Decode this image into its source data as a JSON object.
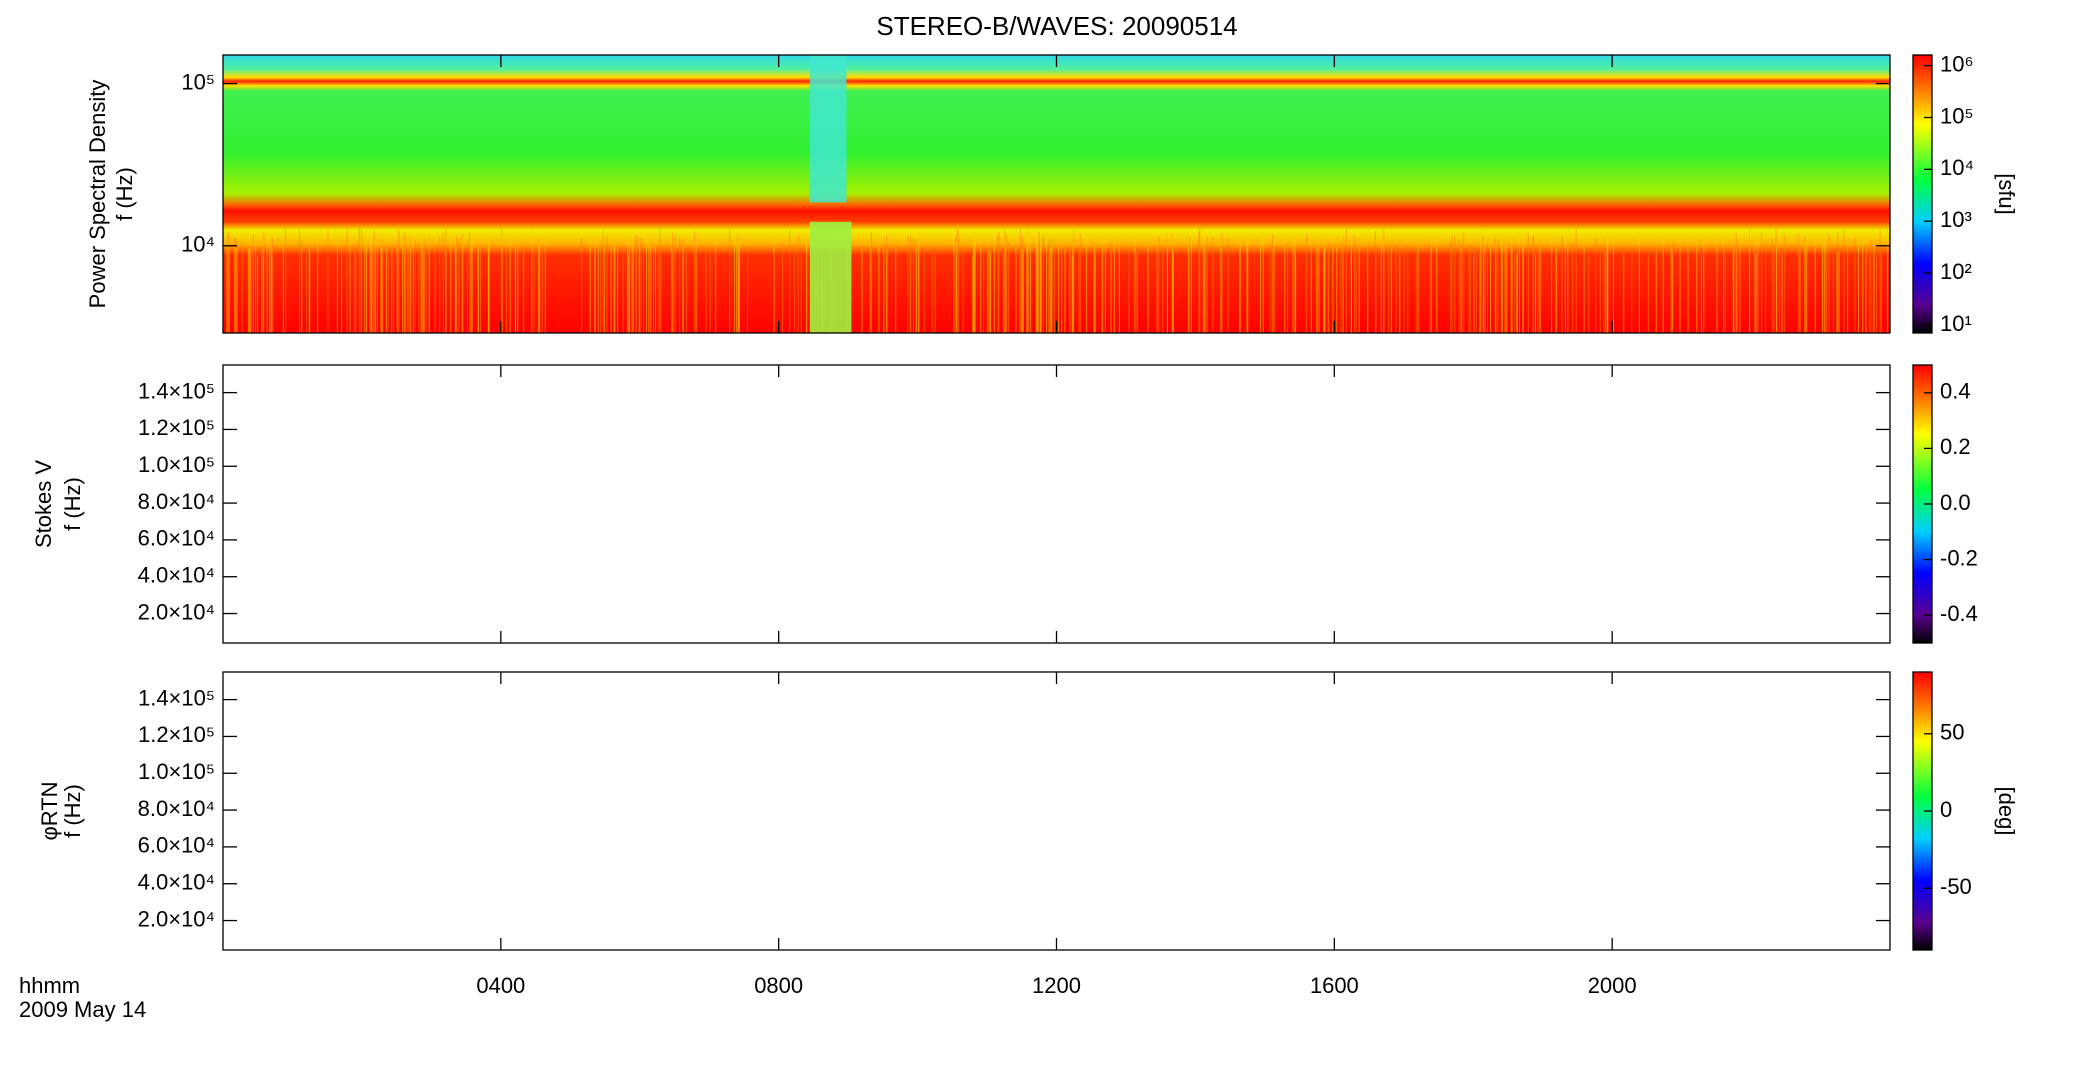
{
  "title": "STEREO-B/WAVES: 20090514",
  "x_axis": {
    "xlim": [
      0,
      24
    ],
    "xticks": [
      {
        "value": 4,
        "label": "0400"
      },
      {
        "value": 8,
        "label": "0800"
      },
      {
        "value": 12,
        "label": "1200"
      },
      {
        "value": 16,
        "label": "1600"
      },
      {
        "value": 20,
        "label": "2000"
      }
    ],
    "label": [
      "hhmm",
      "2009 May 14"
    ]
  },
  "chart_data": [
    {
      "type": "heatmap",
      "ylabel": [
        "Power Spectral Density",
        "f (Hz)"
      ],
      "ylog": true,
      "ylim": [
        2900,
        150000
      ],
      "yticks": [
        {
          "value": 10000,
          "label": "10⁴"
        },
        {
          "value": 100000,
          "label": "10⁵"
        }
      ],
      "colorbar": {
        "log": true,
        "lim": [
          7,
          1600000
        ],
        "label": "[sfu]",
        "ticks": [
          {
            "value": 10,
            "label": "10¹"
          },
          {
            "value": 100,
            "label": "10²"
          },
          {
            "value": 1000,
            "label": "10³"
          },
          {
            "value": 10000,
            "label": "10⁴"
          },
          {
            "value": 100000,
            "label": "10⁵"
          },
          {
            "value": 1000000,
            "label": "10⁶"
          }
        ]
      }
    },
    {
      "type": "heatmap",
      "ylabel": [
        "Stokes V",
        "f (Hz)"
      ],
      "ylog": false,
      "ylim": [
        4000,
        155000
      ],
      "yticks": [
        {
          "value": 20000,
          "label": "2.0×10⁴"
        },
        {
          "value": 40000,
          "label": "4.0×10⁴"
        },
        {
          "value": 60000,
          "label": "6.0×10⁴"
        },
        {
          "value": 80000,
          "label": "8.0×10⁴"
        },
        {
          "value": 100000,
          "label": "1.0×10⁵"
        },
        {
          "value": 120000,
          "label": "1.2×10⁵"
        },
        {
          "value": 140000,
          "label": "1.4×10⁵"
        }
      ],
      "colorbar": {
        "log": false,
        "lim": [
          -0.5,
          0.5
        ],
        "ticks": [
          -0.4,
          -0.2,
          {
            "value": 0,
            "label": "0.0"
          },
          0.2,
          0.4
        ]
      }
    },
    {
      "type": "heatmap",
      "ylabel": [
        "φRTN",
        "f (Hz)"
      ],
      "ylog": false,
      "ylim": [
        4000,
        155000
      ],
      "yticks": [
        {
          "value": 20000,
          "label": "2.0×10⁴"
        },
        {
          "value": 40000,
          "label": "4.0×10⁴"
        },
        {
          "value": 60000,
          "label": "6.0×10⁴"
        },
        {
          "value": 80000,
          "label": "8.0×10⁴"
        },
        {
          "value": 100000,
          "label": "1.0×10⁵"
        },
        {
          "value": 120000,
          "label": "1.2×10⁵"
        },
        {
          "value": 140000,
          "label": "1.4×10⁵"
        }
      ],
      "colorbar": {
        "log": false,
        "lim": [
          -90,
          90
        ],
        "label": "[deg]",
        "ticks": [
          -50,
          0,
          50
        ]
      }
    }
  ]
}
